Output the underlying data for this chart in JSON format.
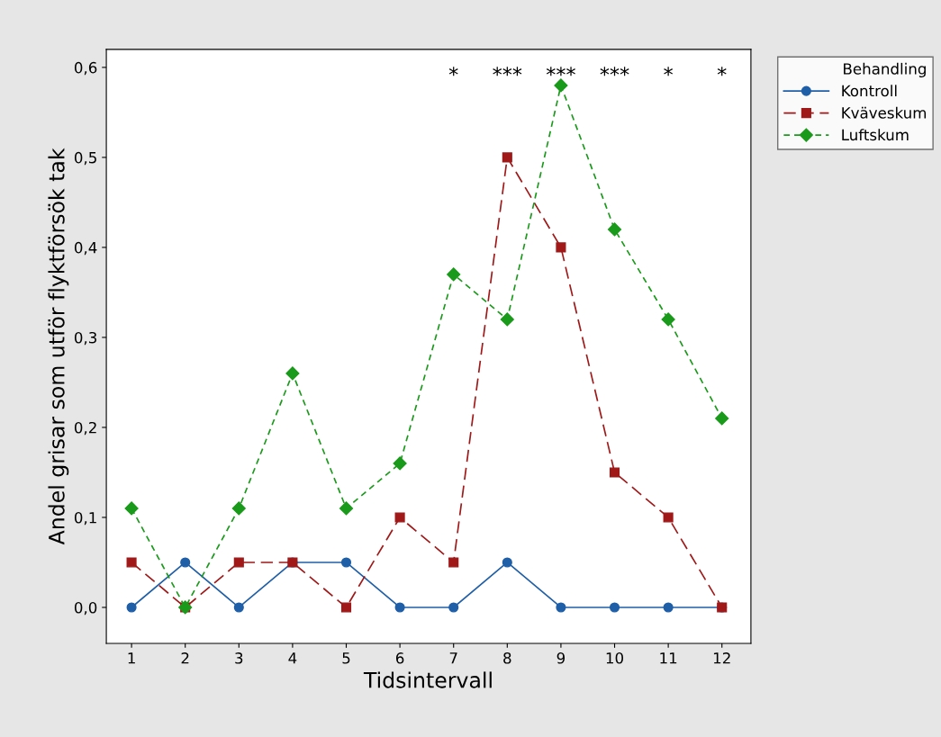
{
  "chart_data": {
    "type": "line",
    "xlabel": "Tidsintervall",
    "ylabel": "Andel grisar som utför flyktförsök tak",
    "legend_title": "Behandling",
    "legend": "right",
    "x": [
      1,
      2,
      3,
      4,
      5,
      6,
      7,
      8,
      9,
      10,
      11,
      12
    ],
    "series": [
      {
        "name": "Kontroll",
        "color": "#1f5fa8",
        "marker": "circle",
        "line_style": "solid",
        "values": [
          0,
          0.05,
          0,
          0.05,
          0.05,
          0,
          0,
          0.05,
          0,
          0,
          0,
          0
        ]
      },
      {
        "name": "Kväveskum",
        "color": "#a01818",
        "marker": "square",
        "line_style": "dashed",
        "values": [
          0.05,
          0,
          0.05,
          0.05,
          0,
          0.1,
          0.05,
          0.5,
          0.4,
          0.15,
          0.1,
          0
        ]
      },
      {
        "name": "Luftskum",
        "color": "#1a9a1a",
        "marker": "diamond",
        "line_style": "dotted",
        "values": [
          0.11,
          0,
          0.11,
          0.26,
          0.11,
          0.16,
          0.37,
          0.32,
          0.58,
          0.42,
          0.32,
          0.21
        ]
      }
    ],
    "xlim": [
      0.53,
      12.54
    ],
    "ylim": [
      -0.04,
      0.62
    ],
    "xticks": [
      1,
      2,
      3,
      4,
      5,
      6,
      7,
      8,
      9,
      10,
      11,
      12
    ],
    "yticks": [
      {
        "value": 0,
        "label": "0,0"
      },
      {
        "value": 0.1,
        "label": "0,1"
      },
      {
        "value": 0.2,
        "label": "0,2"
      },
      {
        "value": 0.3,
        "label": "0,3"
      },
      {
        "value": 0.4,
        "label": "0,4"
      },
      {
        "value": 0.5,
        "label": "0,5"
      },
      {
        "value": 0.6,
        "label": "0,6"
      }
    ],
    "grid": false,
    "annotations": [
      "*",
      "***",
      "***",
      "***",
      "*",
      "*"
    ]
  }
}
